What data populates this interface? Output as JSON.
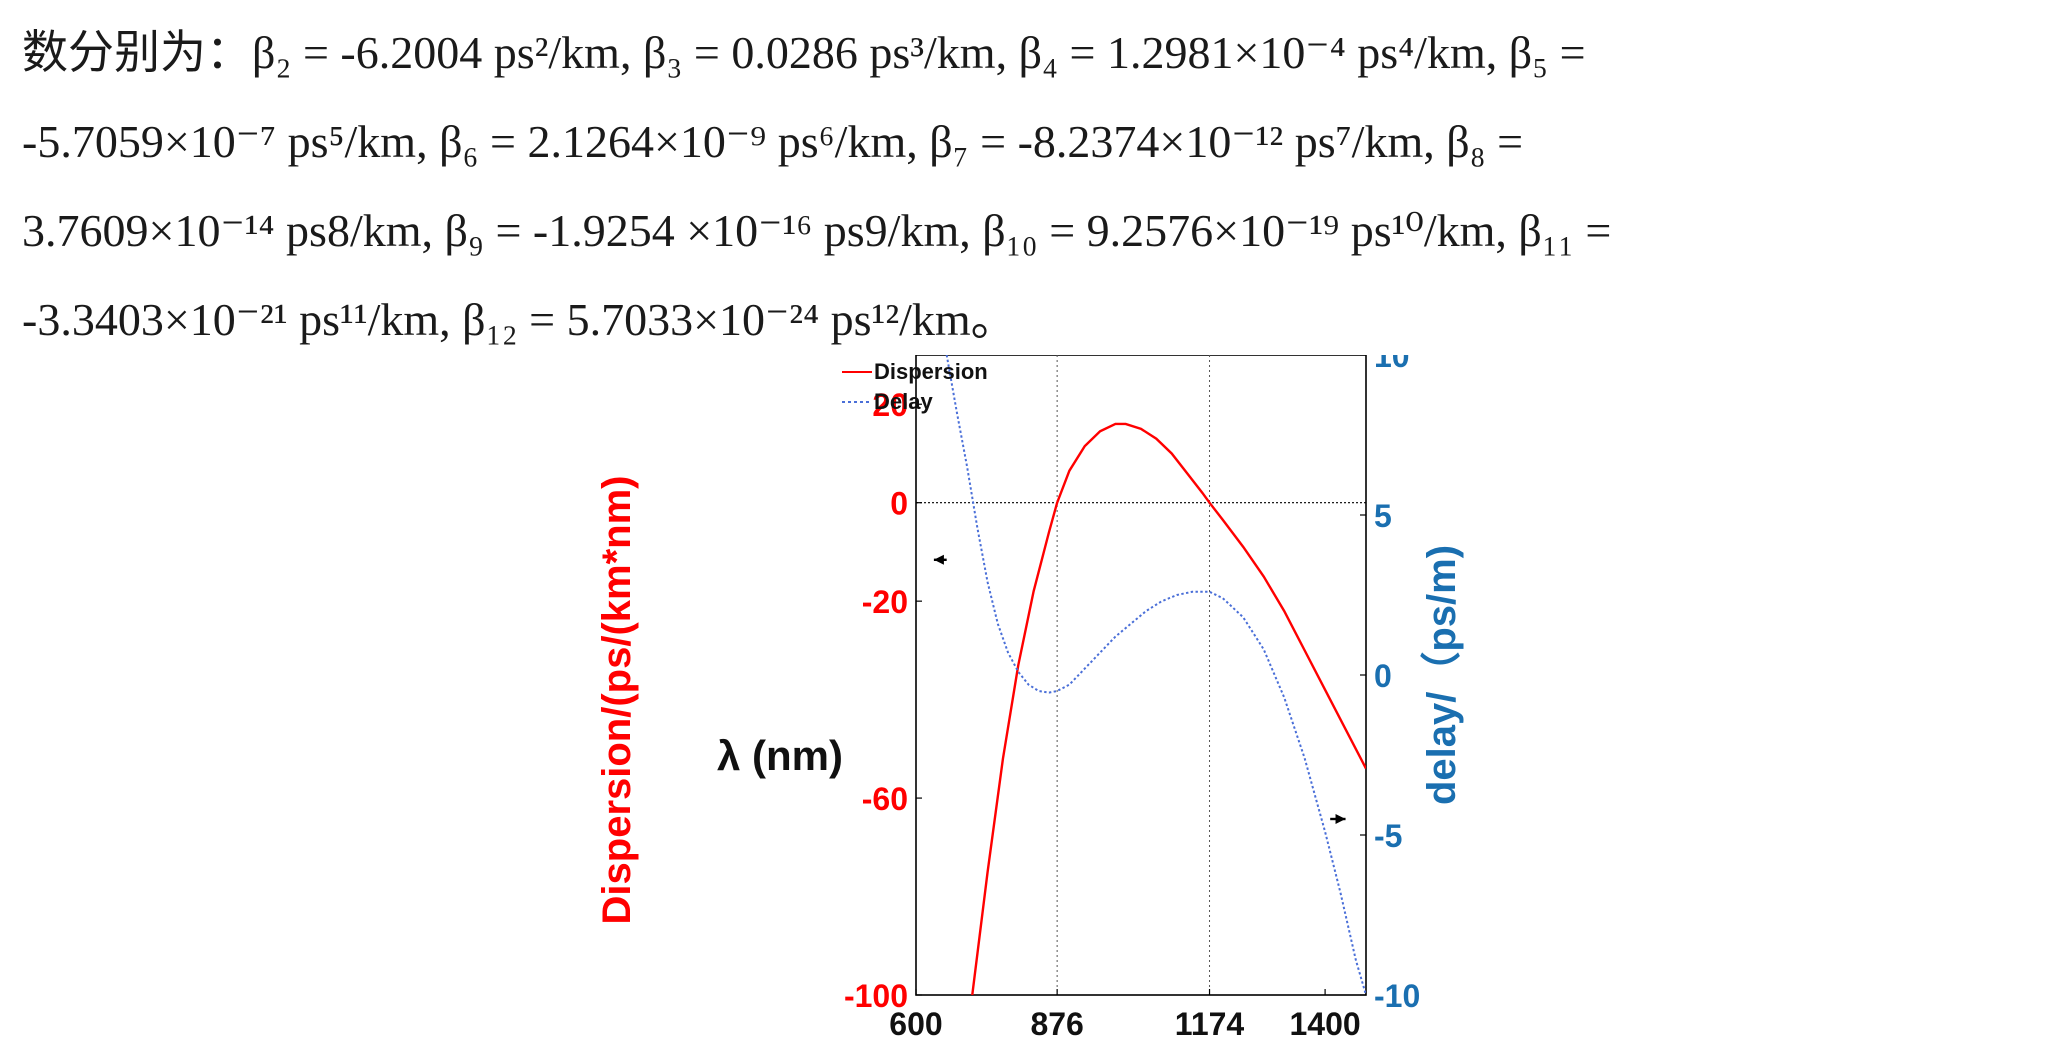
{
  "paragraph": {
    "lines": [
      "数分别为：β₂ = -6.2004 ps²/km, β₃ = 0.0286 ps³/km, β₄ = 1.2981×10⁻⁴ ps⁴/km, β₅ =",
      "-5.7059×10⁻⁷ ps⁵/km, β₆ = 2.1264×10⁻⁹ ps⁶/km, β₇ = -8.2374×10⁻¹² ps⁷/km, β₈ =",
      "3.7609×10⁻¹⁴ ps8/km, β₉ = -1.9254 ×10⁻¹⁶ ps9/km, β₁₀ = 9.2576×10⁻¹⁹ ps¹⁰/km, β₁₁ =",
      "-3.3403×10⁻²¹ ps¹¹/km, β₁₂ = 5.7033×10⁻²⁴ ps¹²/km。"
    ]
  },
  "chart_data": {
    "type": "line",
    "title": "",
    "xlabel": "λ (nm)",
    "ylabel_left": "Dispersion/(ps/(km*nm)",
    "ylabel_right": "delay/（ps/m)",
    "xlim": [
      600,
      1480
    ],
    "ylim_left": [
      -100,
      30
    ],
    "ylim_right": [
      -10,
      10
    ],
    "x_ticks": [
      600,
      876,
      1174,
      1400
    ],
    "y_ticks_left": [
      20,
      0,
      -20,
      -60,
      -100
    ],
    "y_ticks_right": [
      10,
      5,
      0,
      -5,
      -10
    ],
    "reference_vertical_lines": [
      876,
      1174
    ],
    "reference_horizontal_line_left": 0,
    "legend_position": "top-right",
    "colors": {
      "dispersion": "#ff0000",
      "delay": "#4a6fd8",
      "left_axis": "#ff0000",
      "right_axis": "#1a6fb0",
      "arrow": "#000000"
    },
    "series": [
      {
        "name": "Dispersion",
        "axis": "left",
        "x": [
          710,
          740,
          770,
          800,
          830,
          860,
          876,
          900,
          930,
          960,
          990,
          1010,
          1040,
          1070,
          1100,
          1130,
          1160,
          1174,
          1200,
          1240,
          1280,
          1320,
          1360,
          1400,
          1440,
          1480
        ],
        "y": [
          -100,
          -75,
          -52,
          -33,
          -18,
          -6,
          0,
          6.5,
          11.5,
          14.5,
          16,
          16,
          15,
          13,
          10,
          6,
          2,
          0,
          -3.5,
          -9,
          -15,
          -22,
          -30,
          -38,
          -46,
          -54
        ]
      },
      {
        "name": "Delay",
        "axis": "right",
        "x": [
          660,
          680,
          700,
          720,
          740,
          760,
          780,
          800,
          820,
          840,
          860,
          876,
          900,
          930,
          960,
          990,
          1020,
          1050,
          1080,
          1110,
          1140,
          1174,
          1200,
          1240,
          1280,
          1320,
          1360,
          1400,
          1430,
          1460,
          1480
        ],
        "y": [
          10,
          8.2,
          6.5,
          4.6,
          2.9,
          1.6,
          0.7,
          0.1,
          -0.3,
          -0.5,
          -0.55,
          -0.5,
          -0.3,
          0.2,
          0.7,
          1.2,
          1.6,
          2,
          2.3,
          2.5,
          2.6,
          2.6,
          2.4,
          1.8,
          0.8,
          -0.7,
          -2.6,
          -4.9,
          -6.8,
          -8.9,
          -10
        ]
      }
    ],
    "arrows": [
      {
        "x_from": 660,
        "x_to": 635,
        "y_right": 3.6
      },
      {
        "x_from": 1410,
        "x_to": 1440,
        "y_right": -4.5
      }
    ]
  }
}
